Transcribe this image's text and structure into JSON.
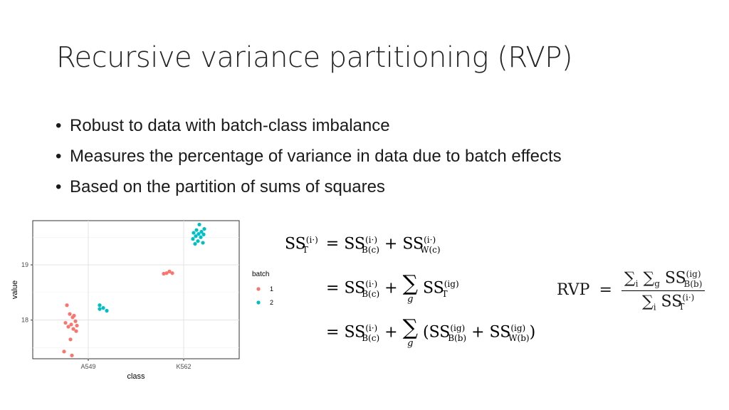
{
  "slide": {
    "title": "Recursive variance partitioning (RVP)",
    "bullets": [
      "Robust to data with batch-class imbalance",
      "Measures the percentage of variance in data due to batch effects",
      "Based on the partition of sums of squares"
    ]
  },
  "chart_data": {
    "type": "scatter",
    "xlabel": "class",
    "ylabel": "value",
    "categories": [
      "A549",
      "K562"
    ],
    "yticks": [
      18,
      19
    ],
    "legend": {
      "title": "batch",
      "placement": "right"
    },
    "colors": {
      "batch1": "#F8766D",
      "batch2": "#00BFC4"
    },
    "series": [
      {
        "name": "1",
        "points": [
          [
            "A549",
            18.27
          ],
          [
            "A549",
            18.11
          ],
          [
            "A549",
            18.05
          ],
          [
            "A549",
            18.08
          ],
          [
            "A549",
            17.98
          ],
          [
            "A549",
            17.95
          ],
          [
            "A549",
            17.92
          ],
          [
            "A549",
            17.9
          ],
          [
            "A549",
            17.88
          ],
          [
            "A549",
            17.84
          ],
          [
            "A549",
            17.8
          ],
          [
            "A549",
            17.65
          ],
          [
            "A549",
            17.43
          ],
          [
            "A549",
            17.36
          ],
          [
            "K562",
            18.88
          ],
          [
            "K562",
            18.85
          ],
          [
            "K562",
            18.84
          ],
          [
            "K562",
            18.85
          ]
        ]
      },
      {
        "name": "2",
        "points": [
          [
            "A549",
            18.27
          ],
          [
            "A549",
            18.22
          ],
          [
            "A549",
            18.17
          ],
          [
            "A549",
            18.2
          ],
          [
            "K562",
            19.73
          ],
          [
            "K562",
            19.65
          ],
          [
            "K562",
            19.63
          ],
          [
            "K562",
            19.6
          ],
          [
            "K562",
            19.58
          ],
          [
            "K562",
            19.56
          ],
          [
            "K562",
            19.55
          ],
          [
            "K562",
            19.52
          ],
          [
            "K562",
            19.5
          ],
          [
            "K562",
            19.47
          ],
          [
            "K562",
            19.43
          ],
          [
            "K562",
            19.4
          ],
          [
            "K562",
            19.38
          ]
        ]
      }
    ]
  },
  "equations": {
    "ss": "SS",
    "sum": "∑",
    "sup_i": "(i·)",
    "sup_ig": "(ig)",
    "sub_T": "T",
    "sub_Bc": "B(c)",
    "sub_Wc": "W(c)",
    "sub_T2": "T",
    "sub_Bb": "B(b)",
    "sub_Wb": "W(b)",
    "sum_index_g": "g",
    "sum_index_i": "i",
    "op_eq": "=",
    "op_plus": "+",
    "rvp_label": "RVP"
  }
}
